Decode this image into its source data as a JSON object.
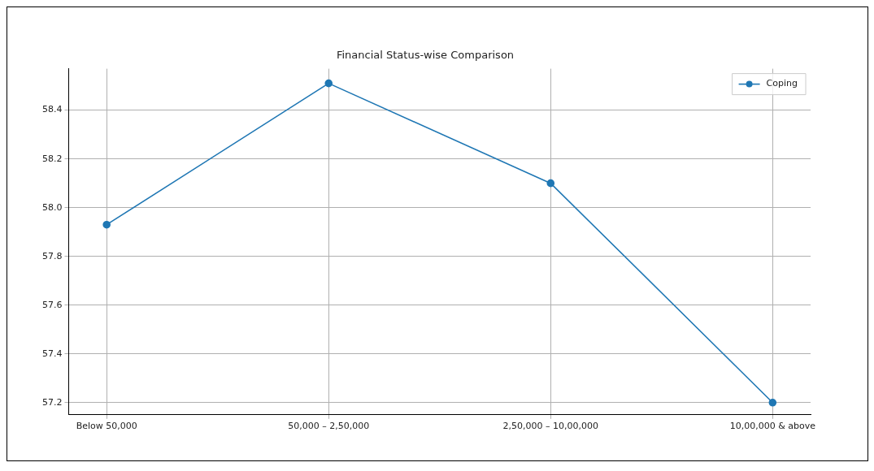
{
  "chart_data": {
    "type": "line",
    "title": "Financial Status-wise Comparison",
    "categories": [
      "Below 50,000",
      "50,000 – 2,50,000",
      "2,50,000 – 10,00,000",
      "10,00,000 & above"
    ],
    "series": [
      {
        "name": "Coping",
        "color": "#1f77b4",
        "values": [
          57.93,
          58.51,
          58.1,
          57.2
        ]
      }
    ],
    "ylim": [
      57.15,
      58.57
    ],
    "yticks": [
      {
        "value": 57.2,
        "label": "57.2"
      },
      {
        "value": 57.4,
        "label": "57.4"
      },
      {
        "value": 57.6,
        "label": "57.6"
      },
      {
        "value": 57.8,
        "label": "57.8"
      },
      {
        "value": 58.0,
        "label": "58.0"
      },
      {
        "value": 58.2,
        "label": "58.2"
      },
      {
        "value": 58.4,
        "label": "58.4"
      }
    ],
    "grid": true,
    "legend": "top right",
    "marker": "circle",
    "line_style": "solid"
  }
}
